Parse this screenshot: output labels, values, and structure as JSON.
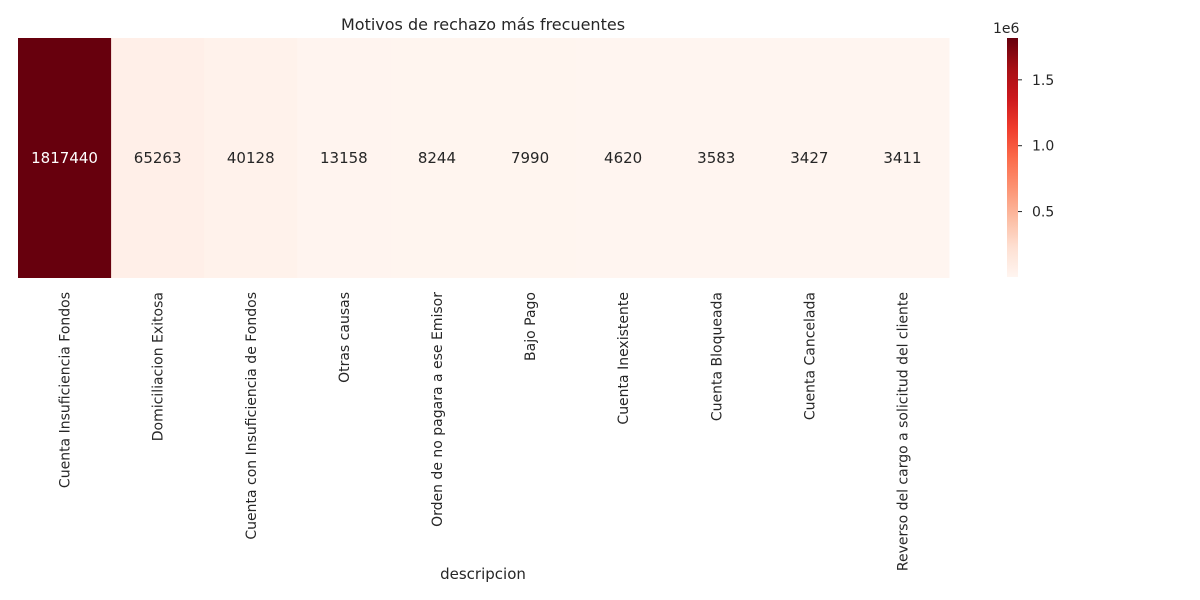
{
  "chart_data": {
    "type": "heatmap",
    "title": "Motivos de rechazo más frecuentes",
    "xlabel": "descripcion",
    "ylabel": "",
    "categories": [
      "Cuenta Insuficiencia Fondos",
      "Domiciliacion Exitosa",
      "Cuenta con Insuficiencia de Fondos",
      "Otras causas",
      "Orden de no pagara a ese Emisor",
      "Bajo Pago",
      "Cuenta Inexistente",
      "Cuenta Bloqueada",
      "Cuenta Cancelada",
      "Reverso del cargo a solicitud del cliente"
    ],
    "values": [
      1817440,
      65263,
      40128,
      13158,
      8244,
      7990,
      4620,
      3583,
      3427,
      3411
    ],
    "colormap": "Reds",
    "colorbar": {
      "min": 3411,
      "max": 1817440,
      "ticks": [
        0.5,
        1.0,
        1.5
      ],
      "tick_labels": [
        "0.5",
        "1.0",
        "1.5"
      ],
      "offset_label": "1e6"
    },
    "grid": false,
    "legend": "none"
  }
}
